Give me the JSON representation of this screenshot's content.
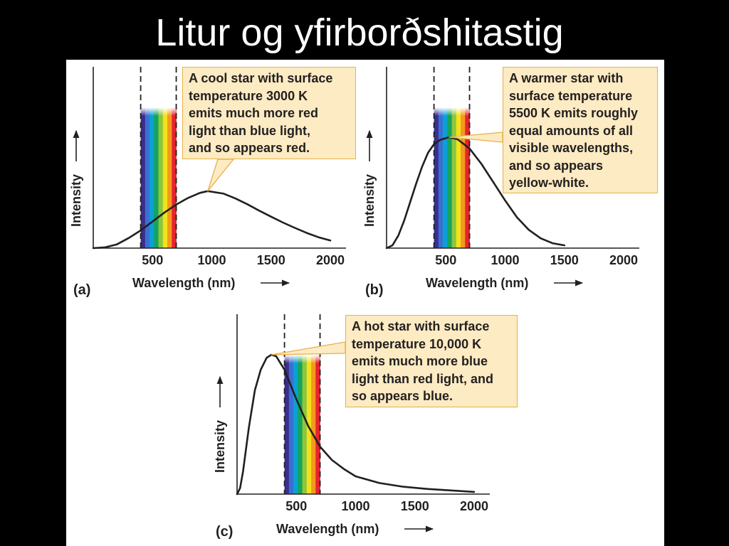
{
  "slide": {
    "title": "Litur og yfirborðshitastig"
  },
  "chart_data": [
    {
      "panel_label": "(a)",
      "type": "line",
      "title": "",
      "xlabel": "Wavelength (nm)",
      "ylabel": "Intensity",
      "xlim": [
        0,
        2100
      ],
      "ylim": [
        0,
        1
      ],
      "xticks": [
        500,
        1000,
        1500,
        2000
      ],
      "visible_band_nm": [
        400,
        700
      ],
      "callout_lines": [
        "A cool star with surface",
        "temperature 3000 K",
        "emits much more red",
        "light than blue light,",
        "and so appears red."
      ],
      "callout_target": {
        "x": 966,
        "y": 0.225
      },
      "series": [
        {
          "x": [
            0,
            100,
            200,
            300,
            400,
            500,
            600,
            700,
            800,
            900,
            966,
            1100,
            1200,
            1300,
            1400,
            1500,
            1600,
            1700,
            1800,
            1900,
            2000
          ],
          "y": [
            0,
            0.003,
            0.015,
            0.04,
            0.07,
            0.105,
            0.14,
            0.172,
            0.198,
            0.218,
            0.225,
            0.215,
            0.196,
            0.173,
            0.148,
            0.124,
            0.101,
            0.08,
            0.06,
            0.043,
            0.03
          ]
        }
      ]
    },
    {
      "panel_label": "(b)",
      "type": "line",
      "title": "",
      "xlabel": "Wavelength (nm)",
      "ylabel": "Intensity",
      "xlim": [
        0,
        2100
      ],
      "ylim": [
        0,
        1
      ],
      "xticks": [
        500,
        1000,
        1500,
        2000
      ],
      "visible_band_nm": [
        400,
        700
      ],
      "callout_lines": [
        "A warmer star with",
        "surface temperature",
        "5500 K emits roughly",
        "equal amounts of all",
        "visible wavelengths,",
        "and so appears",
        "yellow-white."
      ],
      "callout_target": {
        "x": 527,
        "y": 0.79
      },
      "series": [
        {
          "x": [
            0,
            50,
            100,
            150,
            200,
            250,
            300,
            350,
            400,
            450,
            527,
            600,
            700,
            800,
            900,
            1000,
            1100,
            1200,
            1300,
            1400,
            1500
          ],
          "y": [
            0,
            0.02,
            0.09,
            0.2,
            0.33,
            0.46,
            0.58,
            0.68,
            0.74,
            0.77,
            0.79,
            0.775,
            0.71,
            0.6,
            0.47,
            0.34,
            0.22,
            0.13,
            0.07,
            0.035,
            0.02
          ]
        }
      ]
    },
    {
      "panel_label": "(c)",
      "type": "line",
      "title": "",
      "xlabel": "Wavelength (nm)",
      "ylabel": "Intensity",
      "xlim": [
        0,
        2100
      ],
      "ylim": [
        0,
        1
      ],
      "xticks": [
        500,
        1000,
        1500,
        2000
      ],
      "visible_band_nm": [
        400,
        700
      ],
      "callout_lines": [
        "A hot star with surface",
        "temperature 10,000 K",
        "emits much more blue",
        "light than red light, and",
        "so appears blue."
      ],
      "callout_target": {
        "x": 290,
        "y": 0.94
      },
      "series": [
        {
          "x": [
            0,
            25,
            50,
            100,
            150,
            200,
            250,
            290,
            330,
            400,
            450,
            500,
            600,
            700,
            800,
            900,
            1000,
            1200,
            1400,
            1600,
            1800,
            2000
          ],
          "y": [
            0,
            0.04,
            0.15,
            0.45,
            0.7,
            0.84,
            0.92,
            0.94,
            0.93,
            0.84,
            0.74,
            0.64,
            0.46,
            0.32,
            0.23,
            0.17,
            0.12,
            0.075,
            0.05,
            0.035,
            0.025,
            0.015
          ]
        }
      ]
    }
  ]
}
